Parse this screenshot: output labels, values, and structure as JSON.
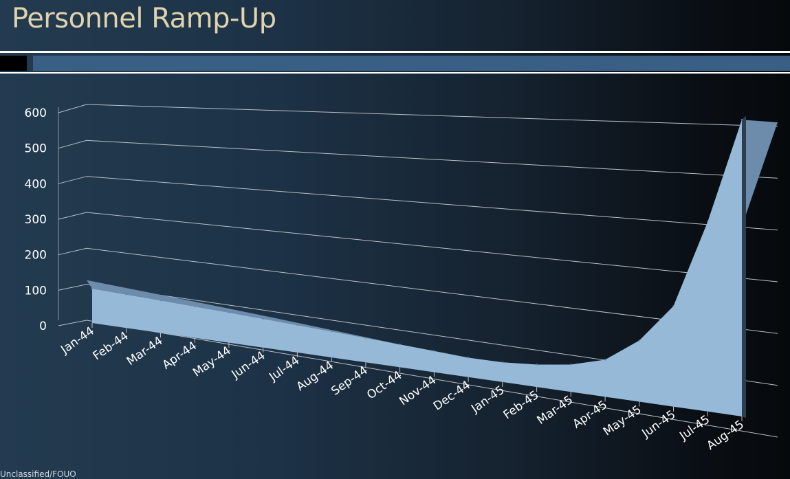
{
  "slide": {
    "title": "Personnel Ramp-Up",
    "footer": "Unclassified/FOUO"
  },
  "colors": {
    "title_text": "#e0d3ad",
    "area_fill": "#97b9d8",
    "area_top_edge": "#6d8bab",
    "area_side": "#1e2d3d",
    "gridline": "#b8c0c9",
    "axis_text": "#ffffff",
    "accent_bar": "#3a5f85"
  },
  "chart_data": {
    "type": "area",
    "title": "",
    "xlabel": "",
    "ylabel": "",
    "ylim": [
      0,
      600
    ],
    "yticks": [
      0,
      100,
      200,
      300,
      400,
      500,
      600
    ],
    "gridlines": true,
    "legend": "none",
    "categories": [
      "Jan-44",
      "Feb-44",
      "Mar-44",
      "Apr-44",
      "May-44",
      "Jun-44",
      "Jul-44",
      "Aug-44",
      "Sep-44",
      "Oct-44",
      "Nov-44",
      "Dec-44",
      "Jan-45",
      "Feb-45",
      "Mar-45",
      "Apr-45",
      "May-45",
      "Jun-45",
      "Jul-45",
      "Aug-45"
    ],
    "series": [
      {
        "values": [
          100,
          95,
          90,
          85,
          80,
          75,
          70,
          65,
          60,
          55,
          50,
          45,
          45,
          50,
          60,
          80,
          130,
          210,
          390,
          600
        ]
      }
    ]
  }
}
